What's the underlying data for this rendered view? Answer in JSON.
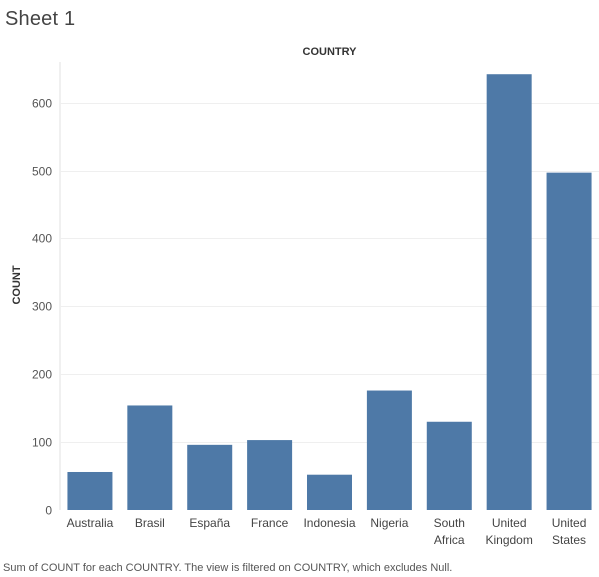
{
  "page": {
    "title": "Sheet 1"
  },
  "chart_data": {
    "type": "bar",
    "title": "COUNTRY",
    "xlabel": "",
    "ylabel": "COUNT",
    "categories": [
      [
        "Australia"
      ],
      [
        "Brasil"
      ],
      [
        "España"
      ],
      [
        "France"
      ],
      [
        "Indonesia"
      ],
      [
        "Nigeria"
      ],
      [
        "South",
        "Africa"
      ],
      [
        "United",
        "Kingdom"
      ],
      [
        "United",
        "States"
      ]
    ],
    "values": [
      56,
      154,
      96,
      103,
      52,
      176,
      130,
      642,
      497
    ],
    "ylim": [
      0,
      660
    ],
    "yticks": [
      0,
      100,
      200,
      300,
      400,
      500,
      600
    ],
    "grid": true,
    "bar_color": "#4e79a7",
    "grid_color": "#efefef"
  },
  "caption": "Sum of COUNT for each COUNTRY. The view is filtered on COUNTRY, which excludes Null."
}
